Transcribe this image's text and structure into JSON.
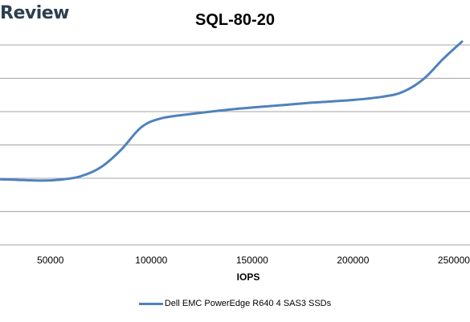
{
  "brand": "Review",
  "chart_data": {
    "type": "line",
    "title": "SQL-80-20",
    "xlabel": "IOPS",
    "ylabel": "",
    "x_ticks": [
      "50000",
      "100000",
      "150000",
      "200000",
      "250000"
    ],
    "xlim": [
      25000,
      258000
    ],
    "ylim": [
      0,
      6
    ],
    "grid": true,
    "legend_position": "bottom",
    "series": [
      {
        "name": "Dell EMC PowerEdge R640 4 SAS3 SSDs",
        "color": "#4f81bd",
        "x": [
          25000,
          45000,
          55000,
          65000,
          75000,
          85000,
          95000,
          105000,
          120000,
          140000,
          160000,
          180000,
          200000,
          215000,
          225000,
          235000,
          245000,
          254000
        ],
        "y": [
          1.97,
          1.93,
          1.96,
          2.06,
          2.33,
          2.85,
          3.53,
          3.8,
          3.93,
          4.07,
          4.17,
          4.27,
          4.35,
          4.45,
          4.6,
          4.98,
          5.6,
          6.1
        ]
      }
    ]
  }
}
